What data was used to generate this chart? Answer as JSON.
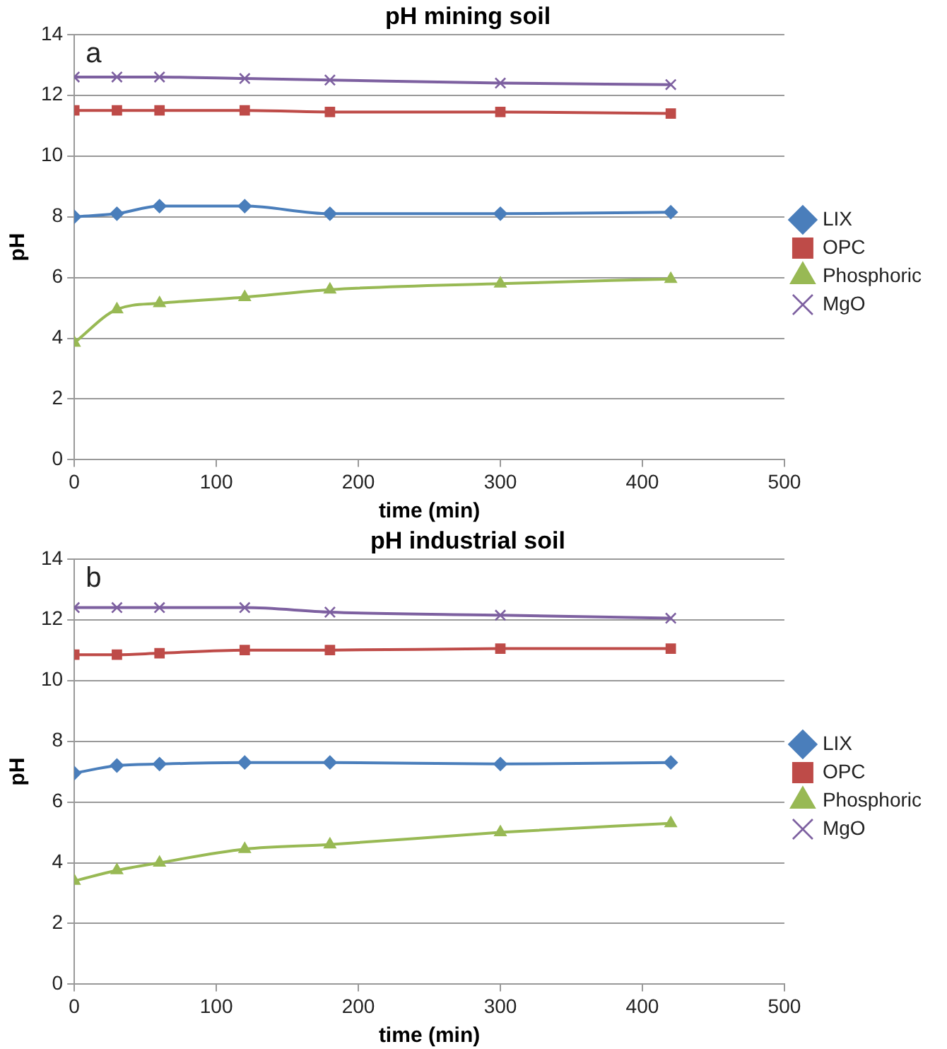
{
  "chart_data": [
    {
      "type": "line",
      "title": "pH mining soil",
      "xlabel": "time (min)",
      "ylabel": "pH",
      "annotations": [
        "a"
      ],
      "x": [
        0,
        30,
        60,
        120,
        180,
        300,
        420
      ],
      "xlim": [
        0,
        500
      ],
      "xticks": [
        0,
        100,
        200,
        300,
        400,
        500
      ],
      "ylim": [
        0,
        14
      ],
      "yticks": [
        0,
        2,
        4,
        6,
        8,
        10,
        12,
        14
      ],
      "grid": "y",
      "legend": "right",
      "series": [
        {
          "name": "LIX",
          "color": "#4a7ebb",
          "marker": "diamond",
          "values": [
            8.0,
            8.1,
            8.35,
            8.35,
            8.1,
            8.1,
            8.15
          ]
        },
        {
          "name": "OPC",
          "color": "#be4b48",
          "marker": "square",
          "values": [
            11.5,
            11.5,
            11.5,
            11.5,
            11.45,
            11.45,
            11.4
          ]
        },
        {
          "name": "Phosphoric",
          "color": "#98b954",
          "marker": "triangle",
          "values": [
            3.85,
            4.95,
            5.15,
            5.35,
            5.6,
            5.8,
            5.95
          ]
        },
        {
          "name": "MgO",
          "color": "#7d60a0",
          "marker": "cross",
          "values": [
            12.6,
            12.6,
            12.6,
            12.55,
            12.5,
            12.4,
            12.35
          ]
        }
      ]
    },
    {
      "type": "line",
      "title": "pH industrial soil",
      "xlabel": "time (min)",
      "ylabel": "pH",
      "annotations": [
        "b"
      ],
      "x": [
        0,
        30,
        60,
        120,
        180,
        300,
        420
      ],
      "xlim": [
        0,
        500
      ],
      "xticks": [
        0,
        100,
        200,
        300,
        400,
        500
      ],
      "ylim": [
        0,
        14
      ],
      "yticks": [
        0,
        2,
        4,
        6,
        8,
        10,
        12,
        14
      ],
      "grid": "y",
      "legend": "right",
      "series": [
        {
          "name": "LIX",
          "color": "#4a7ebb",
          "marker": "diamond",
          "values": [
            6.95,
            7.2,
            7.25,
            7.3,
            7.3,
            7.25,
            7.3
          ]
        },
        {
          "name": "OPC",
          "color": "#be4b48",
          "marker": "square",
          "values": [
            10.85,
            10.85,
            10.9,
            11.0,
            11.0,
            11.05,
            11.05
          ]
        },
        {
          "name": "Phosphoric",
          "color": "#98b954",
          "marker": "triangle",
          "values": [
            3.4,
            3.75,
            4.0,
            4.45,
            4.6,
            5.0,
            5.3
          ]
        },
        {
          "name": "MgO",
          "color": "#7d60a0",
          "marker": "cross",
          "values": [
            12.4,
            12.4,
            12.4,
            12.4,
            12.25,
            12.15,
            12.05
          ]
        }
      ]
    }
  ]
}
